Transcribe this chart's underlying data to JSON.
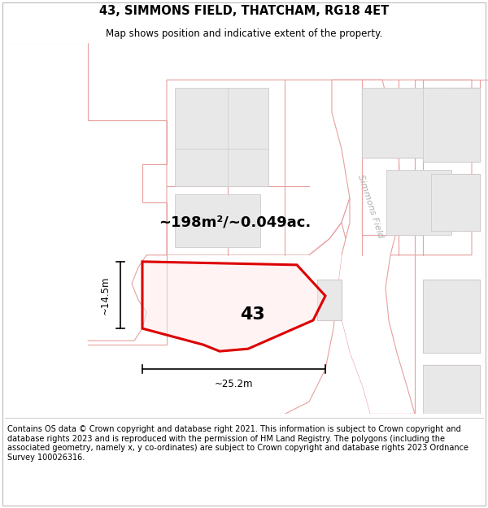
{
  "title": "43, SIMMONS FIELD, THATCHAM, RG18 4ET",
  "subtitle": "Map shows position and indicative extent of the property.",
  "footer": "Contains OS data © Crown copyright and database right 2021. This information is subject to Crown copyright and database rights 2023 and is reproduced with the permission of HM Land Registry. The polygons (including the associated geometry, namely x, y co-ordinates) are subject to Crown copyright and database rights 2023 Ordnance Survey 100026316.",
  "area_label": "~198m²/~0.049ac.",
  "plot_number": "43",
  "width_label": "~25.2m",
  "height_label": "~14.5m",
  "map_bg": "#f7f7f5",
  "left_bg": "#e8eeea",
  "building_color": "#e8e8e8",
  "building_stroke": "#cccccc",
  "boundary_color": "#e8a0a0",
  "road_bg": "#f2f2f0",
  "road_stroke": "#e09898",
  "highlight_color": "#dd0000",
  "street_label": "Simmons Field",
  "title_fontsize": 10.5,
  "subtitle_fontsize": 8.5,
  "footer_fontsize": 7.0,
  "area_fontsize": 13,
  "plot_num_fontsize": 16
}
